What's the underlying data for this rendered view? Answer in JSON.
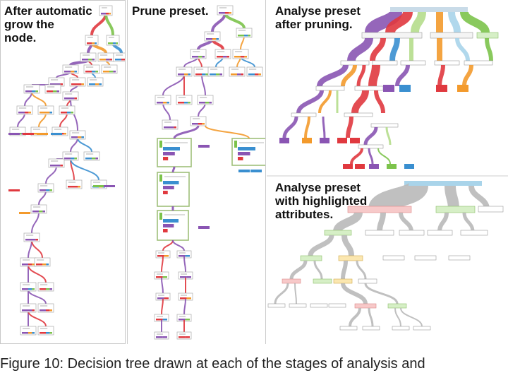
{
  "panels": {
    "left": {
      "label": "After automatic\ngrow the\nnode."
    },
    "mid": {
      "label": "Prune preset."
    },
    "top_right": {
      "label": "Analyse preset\nafter pruning."
    },
    "bottom_right": {
      "label": "Analyse preset\nwith highlighted\nattributes."
    }
  },
  "caption": "Figure 10: Decision tree drawn at each of the stages of analysis and",
  "colors": {
    "purple": "#8a55b3",
    "red": "#e0393f",
    "orange": "#f39a2c",
    "blue": "#3a8fd0",
    "green": "#7cc34b",
    "lightgreen": "#b5dd8c",
    "lightblue": "#a9d4ea",
    "grey": "#b9b9b9",
    "panel_border": "#c8c8c8",
    "node_border": "#9fc07a"
  }
}
